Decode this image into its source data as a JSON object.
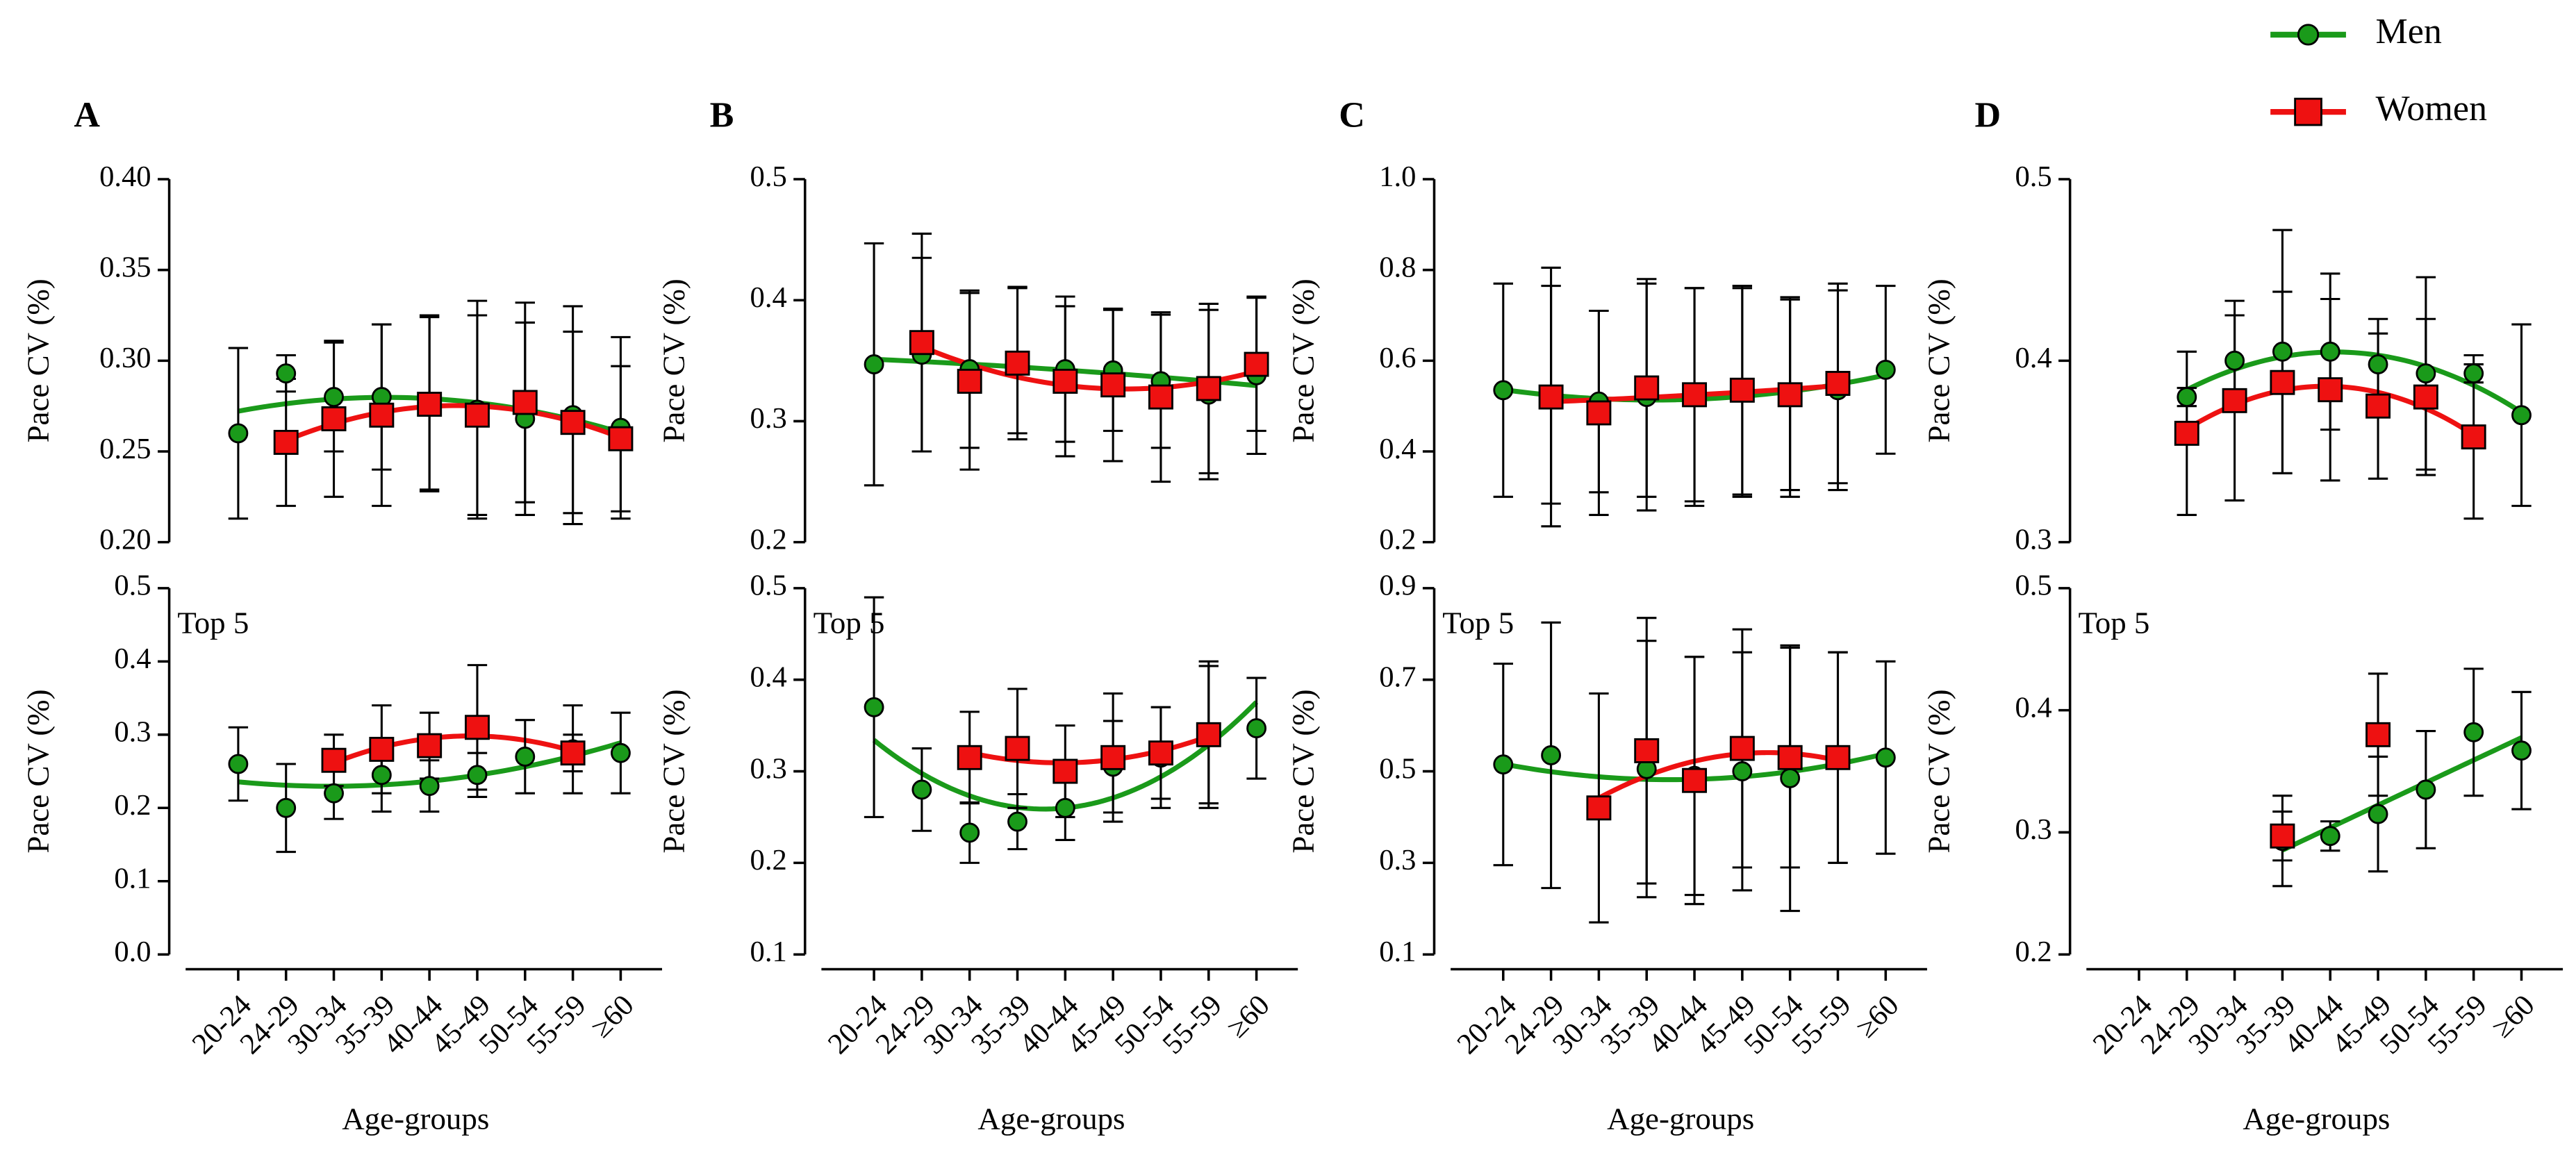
{
  "chart_data": [
    {
      "type": "line",
      "title": "A",
      "ylabel": "Pace CV (%)",
      "ylim": [
        0.2,
        0.4
      ],
      "yticks": [
        {
          "value": 0.2,
          "label": "0.20"
        },
        {
          "value": 0.25,
          "label": "0.25"
        },
        {
          "value": 0.3,
          "label": "0.30"
        },
        {
          "value": 0.35,
          "label": "0.35"
        },
        {
          "value": 0.4,
          "label": "0.40"
        }
      ],
      "series": [
        {
          "name": "Men",
          "color": "#1a9a1a",
          "marker": "circle",
          "fit": 2,
          "values": [
            0.26,
            0.293,
            0.28,
            0.28,
            0.277,
            0.273,
            0.268,
            0.27,
            0.263
          ],
          "errors": [
            0.047,
            0.01,
            0.03,
            0.04,
            0.048,
            0.06,
            0.053,
            0.06,
            0.05
          ]
        },
        {
          "name": "Women",
          "color": "#ee1111",
          "marker": "square",
          "fit": 2,
          "values": [
            null,
            0.255,
            0.268,
            0.27,
            0.276,
            0.27,
            0.277,
            0.266,
            0.257
          ],
          "errors": [
            null,
            0.035,
            0.043,
            0.05,
            0.048,
            0.055,
            0.055,
            0.05,
            0.04
          ]
        }
      ]
    },
    {
      "type": "line",
      "annotation": "Top 5",
      "ylabel": "Pace CV (%)",
      "xlabel": "Age-groups",
      "categories": [
        "20-24",
        "24-29",
        "30-34",
        "35-39",
        "40-44",
        "45-49",
        "50-54",
        "55-59",
        "≥60"
      ],
      "ylim": [
        0,
        0.5
      ],
      "yticks": [
        {
          "value": 0,
          "label": "0.0"
        },
        0.1,
        0.2,
        0.3,
        0.4,
        0.5
      ],
      "series": [
        {
          "name": "Men",
          "color": "#1a9a1a",
          "marker": "circle",
          "fit": 2,
          "values": [
            0.26,
            0.2,
            0.22,
            0.245,
            0.23,
            0.245,
            0.27,
            0.28,
            0.275
          ],
          "errors": [
            0.05,
            0.06,
            0.035,
            0.05,
            0.035,
            0.03,
            0.05,
            0.06,
            0.055
          ]
        },
        {
          "name": "Women",
          "color": "#ee1111",
          "marker": "square",
          "fit": 2,
          "values": [
            null,
            null,
            0.265,
            0.28,
            0.285,
            0.31,
            null,
            0.275,
            null
          ],
          "errors": [
            null,
            null,
            0.035,
            0.06,
            0.045,
            0.085,
            null,
            0.025,
            null
          ]
        }
      ]
    },
    {
      "type": "line",
      "title": "B",
      "ylabel": "Pace CV (%)",
      "ylim": [
        0.2,
        0.5
      ],
      "yticks": [
        0.2,
        0.3,
        0.4,
        0.5
      ],
      "series": [
        {
          "name": "Men",
          "color": "#1a9a1a",
          "marker": "circle",
          "fit": 2,
          "values": [
            0.347,
            0.355,
            0.343,
            0.35,
            0.343,
            0.342,
            0.333,
            0.322,
            0.338
          ],
          "errors": [
            0.1,
            0.08,
            0.065,
            0.06,
            0.06,
            0.05,
            0.055,
            0.07,
            0.065
          ]
        },
        {
          "name": "Women",
          "color": "#ee1111",
          "marker": "square",
          "fit": 2,
          "values": [
            null,
            0.365,
            0.333,
            0.348,
            0.333,
            0.33,
            0.32,
            0.327,
            0.347
          ],
          "errors": [
            null,
            0.09,
            0.073,
            0.063,
            0.062,
            0.063,
            0.07,
            0.07,
            0.055
          ]
        }
      ]
    },
    {
      "type": "line",
      "annotation": "Top 5",
      "ylabel": "Pace CV (%)",
      "xlabel": "Age-groups",
      "categories": [
        "20-24",
        "24-29",
        "30-34",
        "35-39",
        "40-44",
        "45-49",
        "50-54",
        "55-59",
        "≥60"
      ],
      "ylim": [
        0.1,
        0.5
      ],
      "yticks": [
        0.1,
        0.2,
        0.3,
        0.4,
        0.5
      ],
      "series": [
        {
          "name": "Men",
          "color": "#1a9a1a",
          "marker": "circle",
          "fit": 2,
          "values": [
            0.37,
            0.28,
            0.233,
            0.245,
            0.26,
            0.305,
            0.315,
            0.34,
            0.347
          ],
          "errors": [
            0.12,
            0.045,
            0.033,
            0.03,
            0.035,
            0.05,
            0.055,
            0.075,
            0.055
          ]
        },
        {
          "name": "Women",
          "color": "#ee1111",
          "marker": "square",
          "fit": 2,
          "values": [
            null,
            null,
            0.315,
            0.325,
            0.3,
            0.315,
            0.32,
            0.34,
            null
          ],
          "errors": [
            null,
            null,
            0.05,
            0.065,
            0.05,
            0.07,
            0.05,
            0.08,
            null
          ]
        }
      ]
    },
    {
      "type": "line",
      "title": "C",
      "ylabel": "Pace CV (%)",
      "ylim": [
        0.2,
        1.0
      ],
      "yticks": [
        0.2,
        0.4,
        0.6,
        0.8,
        {
          "value": 1.0,
          "label": "1.0"
        }
      ],
      "series": [
        {
          "name": "Men",
          "color": "#1a9a1a",
          "marker": "circle",
          "fit": 2,
          "values": [
            0.535,
            0.525,
            0.51,
            0.52,
            0.52,
            0.53,
            0.52,
            0.535,
            0.58
          ],
          "errors": [
            0.235,
            0.24,
            0.2,
            0.25,
            0.24,
            0.23,
            0.22,
            0.22,
            0.185
          ]
        },
        {
          "name": "Women",
          "color": "#ee1111",
          "marker": "square",
          "fit": 2,
          "values": [
            null,
            0.52,
            0.485,
            0.54,
            0.525,
            0.535,
            0.525,
            0.55,
            null
          ],
          "errors": [
            null,
            0.285,
            0.225,
            0.24,
            0.235,
            0.23,
            0.21,
            0.22,
            null
          ]
        }
      ]
    },
    {
      "type": "line",
      "annotation": "Top 5",
      "ylabel": "Pace CV (%)",
      "xlabel": "Age-groups",
      "categories": [
        "20-24",
        "24-29",
        "30-34",
        "35-39",
        "40-44",
        "45-49",
        "50-54",
        "55-59",
        "≥60"
      ],
      "ylim": [
        0.1,
        0.9
      ],
      "yticks": [
        0.1,
        0.3,
        0.5,
        0.7,
        0.9
      ],
      "series": [
        {
          "name": "Men",
          "color": "#1a9a1a",
          "marker": "circle",
          "fit": 2,
          "values": [
            0.515,
            0.535,
            0.42,
            0.505,
            0.49,
            0.5,
            0.485,
            0.53,
            0.53
          ],
          "errors": [
            0.22,
            0.29,
            0.01,
            0.28,
            0.26,
            0.26,
            0.29,
            0.23,
            0.21
          ]
        },
        {
          "name": "Women",
          "color": "#ee1111",
          "marker": "square",
          "fit": 2,
          "values": [
            null,
            null,
            0.42,
            0.545,
            0.48,
            0.55,
            0.53,
            0.53,
            null
          ],
          "errors": [
            null,
            null,
            0.25,
            0.29,
            0.27,
            0.26,
            0.24,
            0.23,
            null
          ]
        }
      ]
    },
    {
      "type": "line",
      "title": "D",
      "ylabel": "Pace CV (%)",
      "ylim": [
        0.3,
        0.5
      ],
      "yticks": [
        0.3,
        0.4,
        0.5
      ],
      "series": [
        {
          "name": "Men",
          "color": "#1a9a1a",
          "marker": "circle",
          "fit": 2,
          "values": [
            null,
            0.38,
            0.4,
            0.405,
            0.405,
            0.398,
            0.393,
            0.393,
            0.37
          ],
          "errors": [
            null,
            0.005,
            0.025,
            0.067,
            0.043,
            0.025,
            0.053,
            0.005,
            0.05
          ]
        },
        {
          "name": "Women",
          "color": "#ee1111",
          "marker": "square",
          "fit": 2,
          "values": [
            null,
            0.36,
            0.378,
            0.388,
            0.384,
            0.375,
            0.38,
            0.358,
            null
          ],
          "errors": [
            null,
            0.045,
            0.055,
            0.05,
            0.05,
            0.04,
            0.043,
            0.045,
            null
          ]
        }
      ]
    },
    {
      "type": "line",
      "annotation": "Top 5",
      "ylabel": "Pace CV (%)",
      "xlabel": "Age-groups",
      "categories": [
        "20-24",
        "24-29",
        "30-34",
        "35-39",
        "40-44",
        "45-49",
        "50-54",
        "55-59",
        "≥60"
      ],
      "ylim": [
        0.2,
        0.5
      ],
      "yticks": [
        0.2,
        0.3,
        0.4,
        0.5
      ],
      "series": [
        {
          "name": "Men",
          "color": "#1a9a1a",
          "marker": "circle",
          "fit": 1,
          "values": [
            null,
            null,
            null,
            0.293,
            0.297,
            0.315,
            0.335,
            0.382,
            0.367
          ],
          "errors": [
            null,
            null,
            null,
            0.037,
            0.012,
            0.047,
            0.048,
            0.052,
            0.048
          ]
        },
        {
          "name": "Women",
          "color": "#ee1111",
          "marker": "square",
          "fit": null,
          "values": [
            null,
            null,
            null,
            0.297,
            null,
            0.38,
            null,
            null,
            null
          ],
          "errors": [
            null,
            null,
            null,
            0.02,
            null,
            0.05,
            null,
            null,
            null
          ]
        }
      ]
    }
  ]
}
